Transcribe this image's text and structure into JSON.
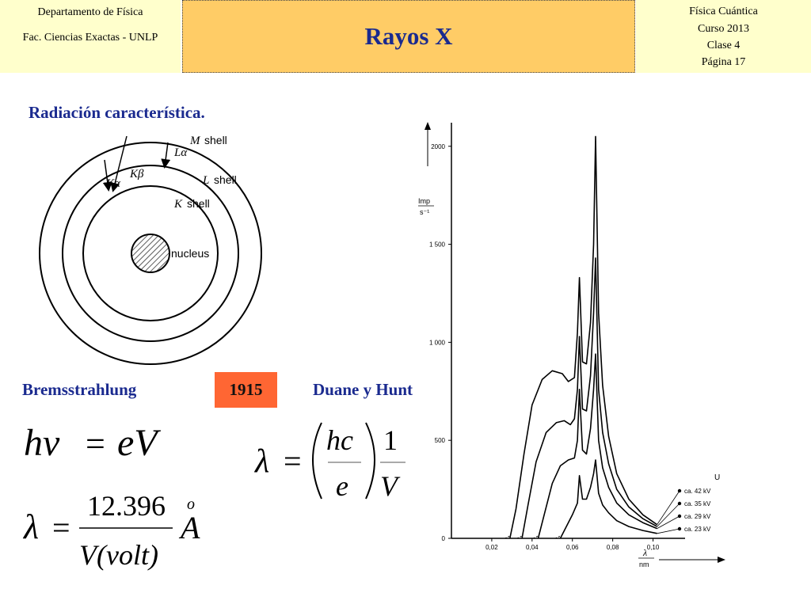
{
  "header": {
    "left_line1": "Departamento de Física",
    "left_line2": "Fac. Ciencias Exactas - UNLP",
    "title": "Rayos X",
    "right_line1": "Física Cuántica",
    "right_line2": "Curso 2013",
    "right_line3": "Clase 4",
    "right_line4": "Página 17"
  },
  "subtitle": "Radiación característica.",
  "atom_diagram": {
    "shell_m": "M",
    "shell_l": "L",
    "shell_k": "K",
    "shell_word": "shell",
    "transition_la": "Lα",
    "transition_kb": "Kβ",
    "transition_ka": "Kα",
    "nucleus": "nucleus"
  },
  "bottom_labels": {
    "bremsstrahlung": "Bremsstrahlung",
    "year": "1915",
    "duane_hunt": "Duane y Hunt"
  },
  "equations": {
    "eq1_lhs": "hν",
    "eq1_eq": "=",
    "eq1_rhs": "eV",
    "eq2_lhs": "λ",
    "eq2_eq": "=",
    "eq2_num": "hc",
    "eq2_den": "e",
    "eq2_num2": "1",
    "eq2_den2": "V",
    "eq3_lhs": "λ",
    "eq3_eq": "=",
    "eq3_num": "12.396",
    "eq3_den": "V(volt)",
    "eq3_unit": "A",
    "eq3_ring": "o"
  },
  "chart_data": {
    "type": "line",
    "ylabel_top": "Imp",
    "ylabel_bottom": "s⁻¹",
    "xlabel_top": "λ",
    "xlabel_bottom": "nm",
    "legend_title": "U",
    "x_ticks": [
      "0,02",
      "0,04",
      "0,06",
      "0,08",
      "0,10"
    ],
    "x_tick_values": [
      0.02,
      0.04,
      0.06,
      0.08,
      0.1
    ],
    "y_ticks": [
      "0",
      "500",
      "1 000",
      "1 500",
      "2000"
    ],
    "y_tick_values": [
      0,
      500,
      1000,
      1500,
      2000
    ],
    "xlim": [
      0,
      0.11
    ],
    "ylim": [
      0,
      2100
    ],
    "series": [
      {
        "name": "ca. 42 kV",
        "x": [
          0.029,
          0.032,
          0.036,
          0.04,
          0.045,
          0.05,
          0.055,
          0.058,
          0.061,
          0.0625,
          0.0635,
          0.065,
          0.067,
          0.069,
          0.0705,
          0.0715,
          0.073,
          0.075,
          0.078,
          0.082,
          0.088,
          0.095,
          0.102
        ],
        "y": [
          0,
          150,
          430,
          680,
          810,
          855,
          840,
          800,
          820,
          1050,
          1330,
          900,
          890,
          1100,
          1500,
          2050,
          1150,
          780,
          520,
          330,
          200,
          120,
          70
        ]
      },
      {
        "name": "ca. 35 kV",
        "x": [
          0.035,
          0.038,
          0.042,
          0.047,
          0.052,
          0.056,
          0.059,
          0.061,
          0.0625,
          0.0635,
          0.065,
          0.067,
          0.069,
          0.0705,
          0.0715,
          0.073,
          0.075,
          0.078,
          0.082,
          0.088,
          0.095,
          0.102
        ],
        "y": [
          0,
          170,
          390,
          540,
          590,
          600,
          580,
          610,
          760,
          1030,
          660,
          650,
          830,
          1150,
          1430,
          760,
          540,
          380,
          250,
          160,
          100,
          60
        ]
      },
      {
        "name": "ca. 29 kV",
        "x": [
          0.043,
          0.046,
          0.05,
          0.054,
          0.058,
          0.061,
          0.0625,
          0.0635,
          0.065,
          0.067,
          0.069,
          0.0705,
          0.0715,
          0.073,
          0.075,
          0.078,
          0.082,
          0.088,
          0.095,
          0.102
        ],
        "y": [
          0,
          120,
          280,
          370,
          400,
          410,
          500,
          760,
          450,
          430,
          560,
          760,
          940,
          500,
          360,
          260,
          180,
          120,
          80,
          50
        ]
      },
      {
        "name": "ca. 23 kV",
        "x": [
          0.054,
          0.057,
          0.06,
          0.0625,
          0.0635,
          0.065,
          0.067,
          0.069,
          0.0705,
          0.0715,
          0.073,
          0.075,
          0.078,
          0.082,
          0.088,
          0.095,
          0.102
        ],
        "y": [
          0,
          60,
          120,
          180,
          320,
          200,
          200,
          260,
          330,
          400,
          230,
          170,
          130,
          90,
          60,
          40,
          25
        ]
      }
    ]
  }
}
